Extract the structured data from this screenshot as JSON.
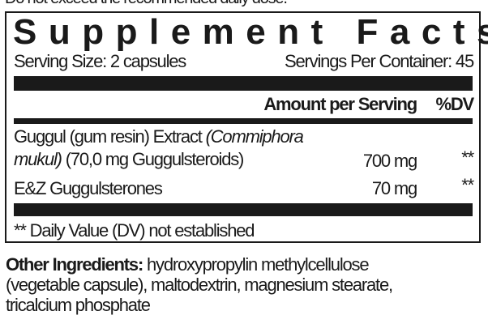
{
  "top_note": "Do not exceed the recommended daily dose.",
  "title": "Supplement Facts",
  "serving_size": "Serving Size: 2 capsules",
  "servings_per_container": "Servings Per Container: 45",
  "header": {
    "amount": "Amount per Serving",
    "dv": "%DV"
  },
  "rows": [
    {
      "name_line1": "Guggul (gum resin) Extract ",
      "name_line1_italic": "(Commiphora",
      "name_line2_italic": "mukul)",
      "name_line2": " (70,0 mg Guggulsteroids)",
      "amount": "700 mg",
      "dv": "**"
    },
    {
      "name_line1": "E&Z Guggulsterones",
      "amount": "70 mg",
      "dv": "**"
    }
  ],
  "footnote": "** Daily Value (DV) not established",
  "other_ingredients": {
    "label": "Other Ingredients:",
    "line1": " hydroxypropylin methylcellulose",
    "line2": "(vegetable capsule), maltodextrin, magnesium stearate,",
    "line3": "tricalcium phosphate"
  }
}
